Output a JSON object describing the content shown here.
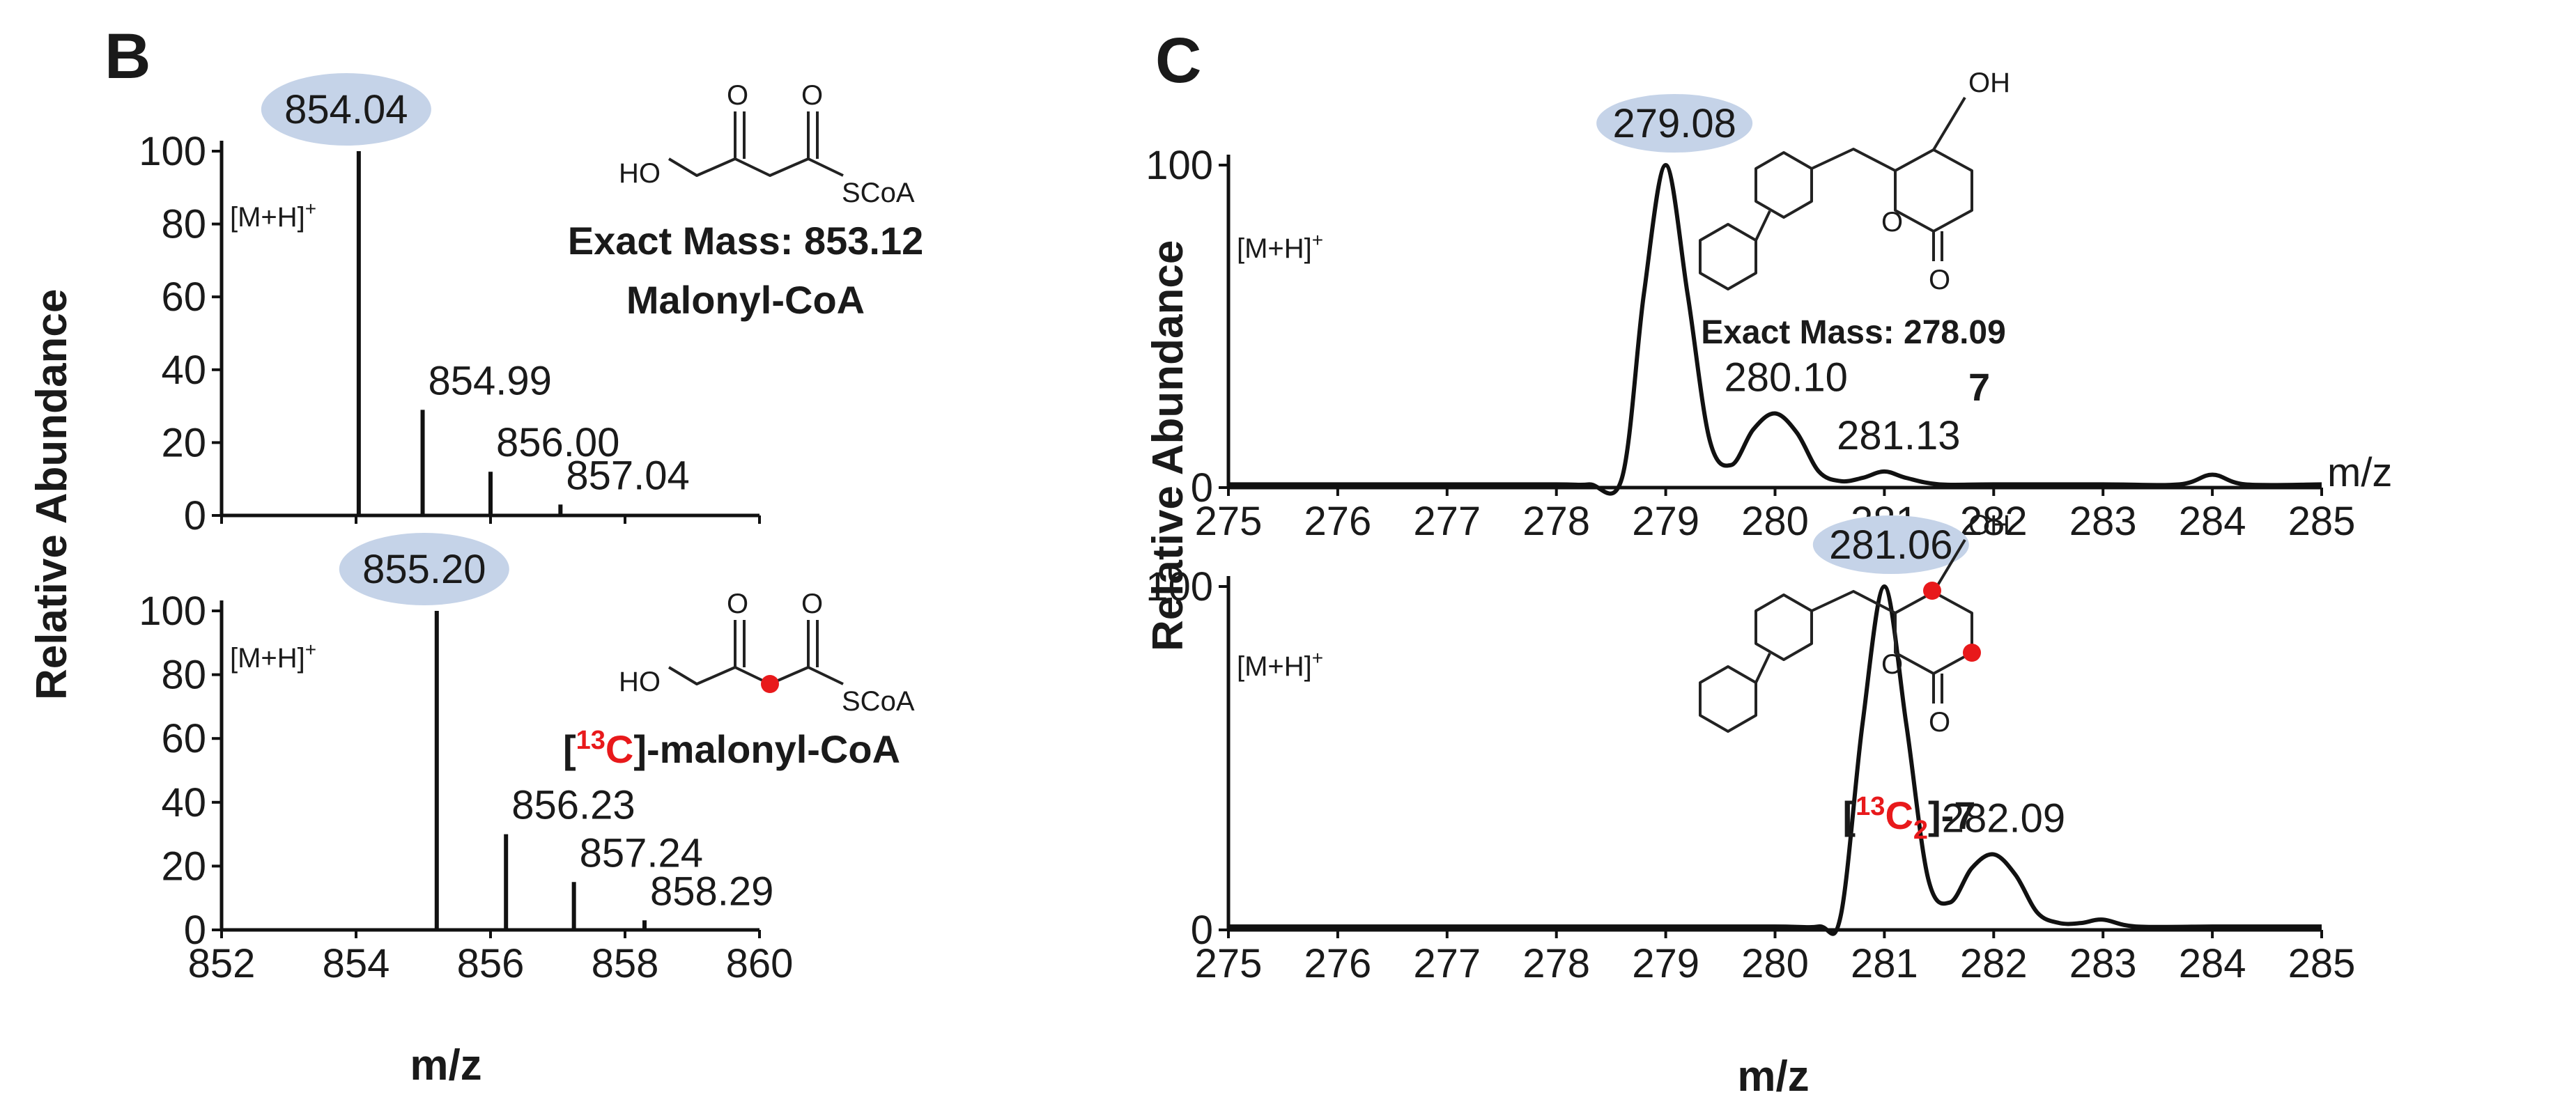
{
  "colors": {
    "highlight": "#c5d3e8",
    "isotope": "#e8191b",
    "ink": "#111111"
  },
  "panels": {
    "B": {
      "letter": "B",
      "ylabel": "Relative Abundance",
      "xlabel": "m/z"
    },
    "C": {
      "letter": "C",
      "ylabel": "Relative Abundance",
      "xlabel": "m/z"
    }
  },
  "structures": {
    "malonyl": {
      "ho": "HO",
      "o1": "O",
      "o2": "O",
      "scoa": "SCoA",
      "exact_mass": "Exact Mass: 853.12",
      "name": "Malonyl-CoA"
    },
    "malonyl13": {
      "ho": "HO",
      "o1": "O",
      "o2": "O",
      "scoa": "SCoA",
      "bracket_open": "[",
      "iso": "13",
      "elem": "C",
      "rest": "]-malonyl-CoA"
    },
    "pyrone7": {
      "oh": "OH",
      "ring_o": "O",
      "keto_o": "O",
      "exact_mass": "Exact Mass: 278.09",
      "compound": "7"
    },
    "pyrone13": {
      "oh": "OH",
      "ring_o": "O",
      "keto_o": "O",
      "bracket_open": "[",
      "iso": "13",
      "elem": "C",
      "sub": "2",
      "rest": "]-7"
    }
  },
  "chart_data": [
    {
      "id": "B-top",
      "type": "bar",
      "panel": "B",
      "xlim": [
        852,
        860
      ],
      "ylim": [
        0,
        100
      ],
      "xticks": [
        852,
        854,
        856,
        858,
        860
      ],
      "yticks": [
        0,
        20,
        40,
        60,
        80,
        100
      ],
      "ion_label": "[M+H]",
      "ion_sup": "+",
      "peaks": [
        {
          "x": 854.04,
          "y": 100,
          "label": "854.04",
          "highlight": true
        },
        {
          "x": 854.99,
          "y": 29,
          "label": "854.99",
          "highlight": false
        },
        {
          "x": 856.0,
          "y": 12,
          "label": "856.00",
          "highlight": false
        },
        {
          "x": 857.04,
          "y": 3,
          "label": "857.04",
          "highlight": false
        }
      ]
    },
    {
      "id": "B-bottom",
      "type": "bar",
      "panel": "B",
      "xlim": [
        852,
        860
      ],
      "ylim": [
        0,
        100
      ],
      "xticks": [
        852,
        854,
        856,
        858,
        860
      ],
      "yticks": [
        0,
        20,
        40,
        60,
        80,
        100
      ],
      "ion_label": "[M+H]",
      "ion_sup": "+",
      "peaks": [
        {
          "x": 855.2,
          "y": 100,
          "label": "855.20",
          "highlight": true
        },
        {
          "x": 856.23,
          "y": 30,
          "label": "856.23",
          "highlight": false
        },
        {
          "x": 857.24,
          "y": 15,
          "label": "857.24",
          "highlight": false
        },
        {
          "x": 858.29,
          "y": 3,
          "label": "858.29",
          "highlight": false
        }
      ]
    },
    {
      "id": "C-top",
      "type": "line",
      "panel": "C",
      "xlim": [
        275,
        285
      ],
      "ylim": [
        0,
        100
      ],
      "xticks": [
        275,
        276,
        277,
        278,
        279,
        280,
        281,
        282,
        283,
        284,
        285
      ],
      "yticks": [
        0,
        100
      ],
      "ion_label": "[M+H]",
      "ion_sup": "+",
      "axis_unit": "m/z",
      "x": [
        275,
        276,
        277,
        278,
        278.3,
        278.6,
        278.8,
        279.0,
        279.2,
        279.4,
        279.6,
        279.8,
        280.0,
        280.2,
        280.4,
        280.6,
        280.8,
        281.0,
        281.2,
        281.5,
        282,
        283,
        283.7,
        284.0,
        284.3,
        285
      ],
      "y": [
        1,
        1,
        1,
        1,
        1,
        3,
        60,
        100,
        60,
        15,
        7,
        18,
        23,
        17,
        5,
        2,
        3,
        5,
        3,
        1,
        1,
        1,
        1,
        4,
        1,
        1
      ],
      "annotations": [
        {
          "x": 279.08,
          "y": 100,
          "label": "279.08",
          "highlight": true
        },
        {
          "x": 280.1,
          "y": 23,
          "label": "280.10",
          "highlight": false
        },
        {
          "x": 281.13,
          "y": 5,
          "label": "281.13",
          "highlight": false
        }
      ]
    },
    {
      "id": "C-bottom",
      "type": "line",
      "panel": "C",
      "xlim": [
        275,
        285
      ],
      "ylim": [
        0,
        100
      ],
      "xticks": [
        275,
        276,
        277,
        278,
        279,
        280,
        281,
        282,
        283,
        284,
        285
      ],
      "yticks": [
        0,
        100
      ],
      "ion_label": "[M+H]",
      "ion_sup": "+",
      "x": [
        275,
        276,
        277,
        278,
        279,
        280,
        280.4,
        280.6,
        280.8,
        281.0,
        281.2,
        281.4,
        281.6,
        281.8,
        282.0,
        282.2,
        282.4,
        282.6,
        282.8,
        283.0,
        283.3,
        284.0,
        284.3,
        285
      ],
      "y": [
        1,
        1,
        1,
        1,
        1,
        1,
        1,
        4,
        60,
        100,
        60,
        15,
        8,
        18,
        22,
        16,
        5,
        2,
        2,
        3,
        1,
        1,
        1,
        1
      ],
      "annotations": [
        {
          "x": 281.06,
          "y": 100,
          "label": "281.06",
          "highlight": true
        },
        {
          "x": 282.09,
          "y": 22,
          "label": "282.09",
          "highlight": false
        }
      ]
    }
  ]
}
